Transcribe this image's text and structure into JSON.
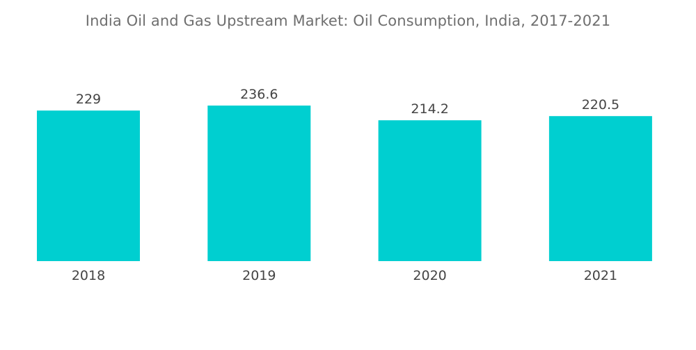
{
  "chart_data": {
    "type": "bar",
    "title": "India Oil and Gas Upstream Market: Oil Consumption, India, 2017-2021",
    "categories": [
      "2018",
      "2019",
      "2020",
      "2021"
    ],
    "values": [
      229,
      236.6,
      214.2,
      220.5
    ],
    "data_labels": [
      "229",
      "236.6",
      "214.2",
      "220.5"
    ],
    "xlabel": "",
    "ylabel": "",
    "ylim": [
      0,
      236.6
    ],
    "grid": false,
    "legend": "none",
    "bar_color": "#00cfd0"
  }
}
